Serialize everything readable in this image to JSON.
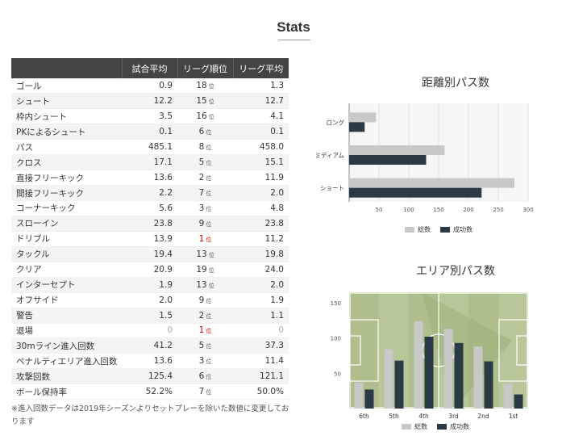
{
  "page_title": "Stats",
  "table": {
    "headers": [
      "",
      "試合平均",
      "リーグ順位",
      "リーグ平均"
    ],
    "rank_unit": "位",
    "rows": [
      {
        "name": "ゴール",
        "avg": "0.9",
        "rank": "18",
        "league": "1.3"
      },
      {
        "name": "シュート",
        "avg": "12.2",
        "rank": "15",
        "league": "12.7"
      },
      {
        "name": "枠内シュート",
        "avg": "3.5",
        "rank": "16",
        "league": "4.1"
      },
      {
        "name": "PKによるシュート",
        "avg": "0.1",
        "rank": "6",
        "league": "0.1"
      },
      {
        "name": "パス",
        "avg": "485.1",
        "rank": "8",
        "league": "458.0"
      },
      {
        "name": "クロス",
        "avg": "17.1",
        "rank": "5",
        "league": "15.1"
      },
      {
        "name": "直接フリーキック",
        "avg": "13.6",
        "rank": "2",
        "league": "11.9"
      },
      {
        "name": "間接フリーキック",
        "avg": "2.2",
        "rank": "7",
        "league": "2.0"
      },
      {
        "name": "コーナーキック",
        "avg": "5.6",
        "rank": "3",
        "league": "4.8"
      },
      {
        "name": "スローイン",
        "avg": "23.8",
        "rank": "9",
        "league": "23.8"
      },
      {
        "name": "ドリブル",
        "avg": "13.9",
        "rank": "1",
        "league": "11.2"
      },
      {
        "name": "タックル",
        "avg": "19.4",
        "rank": "13",
        "league": "19.8"
      },
      {
        "name": "クリア",
        "avg": "20.9",
        "rank": "19",
        "league": "24.0"
      },
      {
        "name": "インターセプト",
        "avg": "1.9",
        "rank": "13",
        "league": "2.0"
      },
      {
        "name": "オフサイド",
        "avg": "2.0",
        "rank": "9",
        "league": "1.9"
      },
      {
        "name": "警告",
        "avg": "1.5",
        "rank": "2",
        "league": "1.1"
      },
      {
        "name": "退場",
        "avg": "0",
        "rank": "1",
        "league": "0"
      },
      {
        "name": "30mライン進入回数",
        "avg": "41.2",
        "rank": "5",
        "league": "37.3"
      },
      {
        "name": "ペナルティエリア進入回数",
        "avg": "13.6",
        "rank": "3",
        "league": "11.4"
      },
      {
        "name": "攻撃回数",
        "avg": "125.4",
        "rank": "6",
        "league": "121.1"
      },
      {
        "name": "ボール保持率",
        "avg": "52.2%",
        "rank": "7",
        "league": "50.0%"
      }
    ]
  },
  "footnote": "※進入回数データは2019年シーズンよりセットプレーを除いた数値に変更しております",
  "colors": {
    "total": "#c8c8c8",
    "success": "#2b3a44",
    "header": "#444444",
    "rank_top": "#cc0000"
  },
  "chart_data": [
    {
      "type": "bar",
      "orientation": "horizontal",
      "title": "距離別パス数",
      "categories": [
        "ロング",
        "ミディアム",
        "ショート"
      ],
      "series": [
        {
          "name": "総数",
          "values": [
            45,
            160,
            277
          ]
        },
        {
          "name": "成功数",
          "values": [
            26,
            129,
            222
          ]
        }
      ],
      "xlim": [
        0,
        300
      ],
      "xticks": [
        "50",
        "100",
        "150",
        "200",
        "250",
        "300"
      ],
      "grid": true,
      "legend": "bottom"
    },
    {
      "type": "bar",
      "title": "エリア別パス数",
      "categories": [
        "6th",
        "5th",
        "4th",
        "3rd",
        "2nd",
        "1st"
      ],
      "series": [
        {
          "name": "総数",
          "values": [
            37,
            84,
            124,
            113,
            88,
            35
          ]
        },
        {
          "name": "成功数",
          "values": [
            27,
            68,
            102,
            93,
            67,
            20
          ]
        }
      ],
      "ylim": [
        0,
        165
      ],
      "yticks": [
        "50",
        "100",
        "150"
      ],
      "legend": "bottom",
      "background": "soccer-pitch"
    }
  ]
}
